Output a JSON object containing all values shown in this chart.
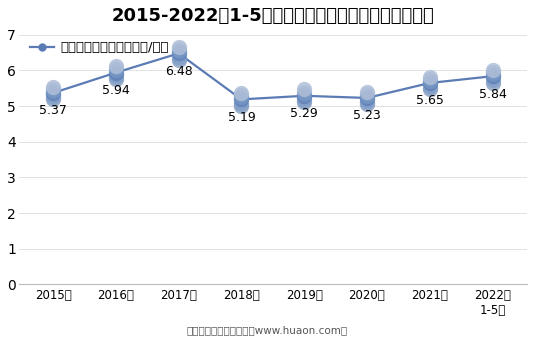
{
  "title": "2015-2022年1-5月郑州商品交易所白糖期货成交均价",
  "legend_label": "白糖期货成交均价（万元/手）",
  "x_labels": [
    "2015年",
    "2016年",
    "2017年",
    "2018年",
    "2019年",
    "2020年",
    "2021年",
    "2022年\n1-5月"
  ],
  "x_values": [
    0,
    1,
    2,
    3,
    4,
    5,
    6,
    7
  ],
  "y_values": [
    5.37,
    5.94,
    6.48,
    5.19,
    5.29,
    5.23,
    5.65,
    5.84
  ],
  "annotations": [
    "5.37",
    "5.94",
    "6.48",
    "5.19",
    "5.29",
    "5.23",
    "5.65",
    "5.84"
  ],
  "ann_offsets_y": [
    -0.32,
    -0.32,
    -0.32,
    -0.32,
    -0.32,
    -0.32,
    -0.32,
    -0.32
  ],
  "ylim": [
    0,
    7
  ],
  "yticks": [
    0,
    1,
    2,
    3,
    4,
    5,
    6,
    7
  ],
  "line_color": "#5b7bb5",
  "marker_top_color": "#b0bfd8",
  "marker_body_color": "#7b9cc8",
  "marker_shadow_color": "#8090b0",
  "background_color": "#ffffff",
  "title_fontsize": 13,
  "legend_fontsize": 9.5,
  "annotation_fontsize": 9,
  "tick_fontsize": 8.5,
  "footer": "制图：华经产业研究院（www.huaon.com）",
  "footer_fontsize": 7.5
}
